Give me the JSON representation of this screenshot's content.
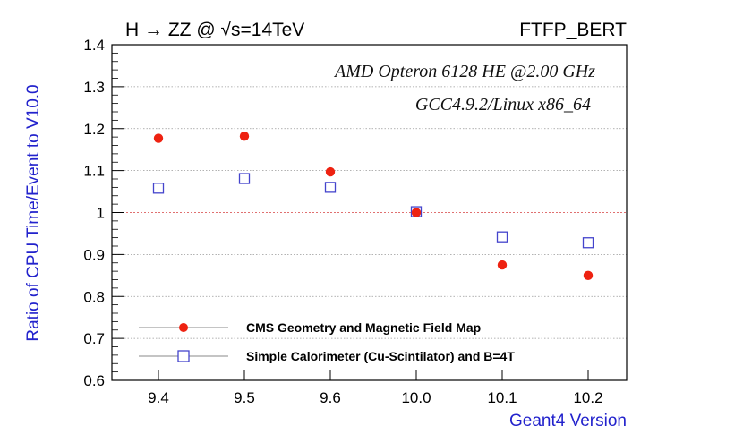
{
  "chart_data": {
    "type": "scatter",
    "title_left": "H → ZZ @ √s=14TeV",
    "title_right": "FTFP_BERT",
    "annotations": [
      "AMD Opteron 6128 HE @2.00 GHz",
      "GCC4.9.2/Linux x86_64"
    ],
    "xlabel": "Geant4 Version",
    "ylabel": "Ratio of CPU Time/Event to V10.0",
    "categories": [
      "9.4",
      "9.5",
      "9.6",
      "10.0",
      "10.1",
      "10.2"
    ],
    "ylim": [
      0.6,
      1.4
    ],
    "yticks": [
      "0.6",
      "0.7",
      "0.8",
      "0.9",
      "1",
      "1.1",
      "1.2",
      "1.3",
      "1.4"
    ],
    "reference_line": 1.0,
    "grid": "horizontal dotted",
    "series": [
      {
        "name": "CMS Geometry and Magnetic Field Map",
        "marker": "filled-circle",
        "color": "#ee2211",
        "values": [
          1.177,
          1.182,
          1.097,
          1.0,
          0.875,
          0.85
        ]
      },
      {
        "name": "Simple Calorimeter (Cu-Scintilator) and B=4T",
        "marker": "open-square",
        "color": "#4444cc",
        "values": [
          1.058,
          1.081,
          1.06,
          1.002,
          0.942,
          0.928
        ]
      }
    ],
    "legend_position": "bottom-left",
    "colors": {
      "axis_label": "#2222cc",
      "reference": "#e07070",
      "grid": "#999999"
    }
  }
}
